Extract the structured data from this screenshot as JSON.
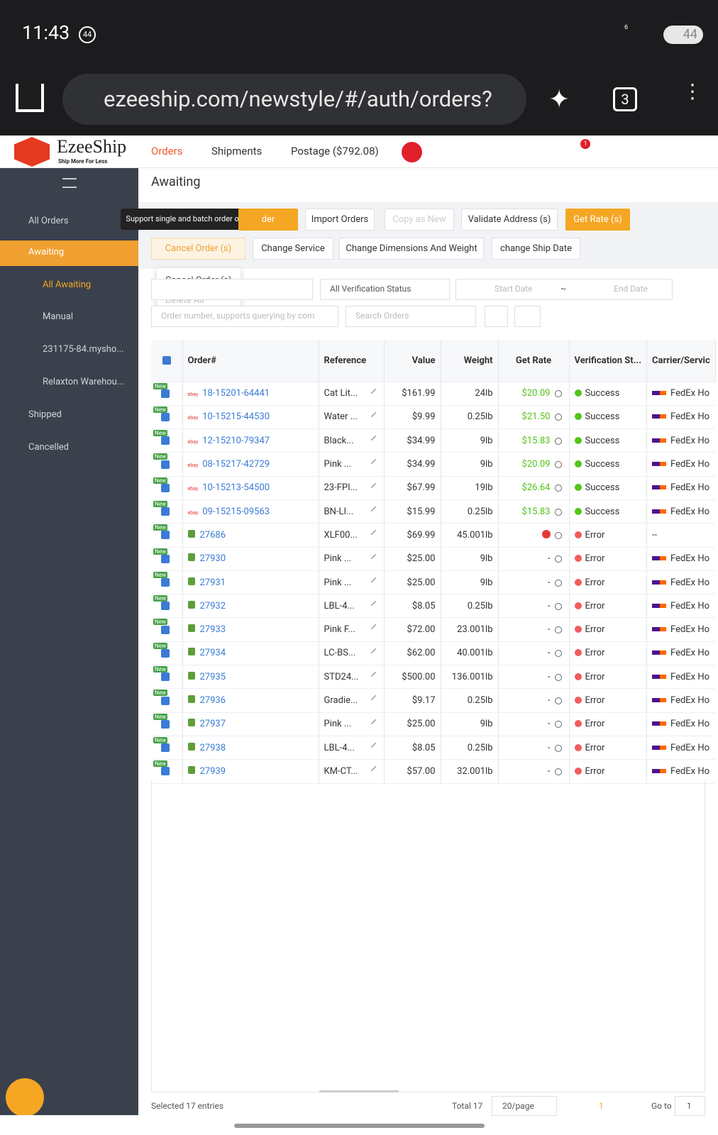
{
  "status_bar": {
    "time": "11:43",
    "badge": "44",
    "network": "6",
    "battery": "44"
  },
  "browser": {
    "url": "ezeeship.com/newstyle/#/auth/orders?",
    "tab_count": "3"
  },
  "header": {
    "logo": "EzeeShip",
    "tagline": "Ship More For Less",
    "nav": [
      "Orders",
      "Shipments",
      "Postage ($792.08)"
    ],
    "notification_count": "1"
  },
  "sidebar": {
    "items": [
      "All Orders",
      "Awaiting",
      "All Awaiting",
      "Manual",
      "231175-84.mysho...",
      "Relaxton Warehou...",
      "Shipped",
      "Cancelled"
    ]
  },
  "page": {
    "title": "Awaiting",
    "tooltip": "Support single and batch order operations",
    "toolbar_row1": [
      "der",
      "Import Orders",
      "Copy as New",
      "Validate Address (s)",
      "Get Rate (s)"
    ],
    "toolbar_row2": [
      "Cancel Order (s)",
      "Change Service",
      "Change Dimensions And Weight",
      "change Ship Date"
    ],
    "dropdown": [
      "Cancel Order (s)",
      "Delete All"
    ],
    "filters": {
      "verification": "All Verification Status",
      "start_date": "Start Date",
      "separator": "~",
      "end_date": "End Date",
      "order_search": "Order number, supports querying by com",
      "search": "Search Orders"
    }
  },
  "table": {
    "columns": [
      "Order#",
      "Reference",
      "Value",
      "Weight",
      "Get Rate",
      "Verification St...",
      "Carrier/Servic"
    ],
    "new_badge": "New",
    "rows": [
      {
        "source": "ebay",
        "order": "18-15201-64441",
        "reference": "Cat Lit...",
        "value": "$161.99",
        "weight": "24lb",
        "rate": "$20.09",
        "status": "Success",
        "carrier": "FedEx Ho"
      },
      {
        "source": "ebay",
        "order": "10-15215-44530",
        "reference": "Water ...",
        "value": "$9.99",
        "weight": "0.25lb",
        "rate": "$21.50",
        "status": "Success",
        "carrier": "FedEx Ho"
      },
      {
        "source": "ebay",
        "order": "12-15210-79347",
        "reference": "Black...",
        "value": "$34.99",
        "weight": "9lb",
        "rate": "$15.83",
        "status": "Success",
        "carrier": "FedEx Ho"
      },
      {
        "source": "ebay",
        "order": "08-15217-42729",
        "reference": "Pink ...",
        "value": "$34.99",
        "weight": "9lb",
        "rate": "$20.09",
        "status": "Success",
        "carrier": "FedEx Ho"
      },
      {
        "source": "ebay",
        "order": "10-15213-54500",
        "reference": "23-FPI...",
        "value": "$67.99",
        "weight": "19lb",
        "rate": "$26.64",
        "status": "Success",
        "carrier": "FedEx Ho"
      },
      {
        "source": "ebay",
        "order": "09-15215-09563",
        "reference": "BN-LI...",
        "value": "$15.99",
        "weight": "0.25lb",
        "rate": "$15.83",
        "status": "Success",
        "carrier": "FedEx Ho"
      },
      {
        "order": "27686",
        "reference": "XLF00...",
        "value": "$69.99",
        "weight": "45.001lb",
        "rate": null,
        "status": "Error",
        "carrier": "--"
      },
      {
        "order": "27930",
        "reference": "Pink ...",
        "value": "$25.00",
        "weight": "9lb",
        "rate": "-",
        "status": "Error",
        "carrier": "FedEx Ho"
      },
      {
        "order": "27931",
        "reference": "Pink ...",
        "value": "$25.00",
        "weight": "9lb",
        "rate": "-",
        "status": "Error",
        "carrier": "FedEx Ho"
      },
      {
        "order": "27932",
        "reference": "LBL-4...",
        "value": "$8.05",
        "weight": "0.25lb",
        "rate": "-",
        "status": "Error",
        "carrier": "FedEx Ho"
      },
      {
        "order": "27933",
        "reference": "Pink F...",
        "value": "$72.00",
        "weight": "23.001lb",
        "rate": "-",
        "status": "Error",
        "carrier": "FedEx Ho"
      },
      {
        "order": "27934",
        "reference": "LC-BS...",
        "value": "$62.00",
        "weight": "40.001lb",
        "rate": "-",
        "status": "Error",
        "carrier": "FedEx Ho"
      },
      {
        "order": "27935",
        "reference": "STD24...",
        "value": "$500.00",
        "weight": "136.001lb",
        "rate": "-",
        "status": "Error",
        "carrier": "FedEx Ho"
      },
      {
        "order": "27936",
        "reference": "Gradie...",
        "value": "$9.17",
        "weight": "0.25lb",
        "rate": "-",
        "status": "Error",
        "carrier": "FedEx Ho"
      },
      {
        "order": "27937",
        "reference": "Pink ...",
        "value": "$25.00",
        "weight": "9lb",
        "rate": "-",
        "status": "Error",
        "carrier": "FedEx Ho"
      },
      {
        "order": "27938",
        "reference": "LBL-4...",
        "value": "$8.05",
        "weight": "0.25lb",
        "rate": "-",
        "status": "Error",
        "carrier": "FedEx Ho"
      },
      {
        "order": "27939",
        "reference": "KM-CT...",
        "value": "$57.00",
        "weight": "32.001lb",
        "rate": "-",
        "status": "Error",
        "carrier": "FedEx Ho"
      }
    ]
  },
  "footer": {
    "selected": "Selected 17 entries",
    "total": "Total 17",
    "page_size": "20/page",
    "current_page": "1",
    "goto_label": "Go to",
    "goto_value": "1"
  }
}
